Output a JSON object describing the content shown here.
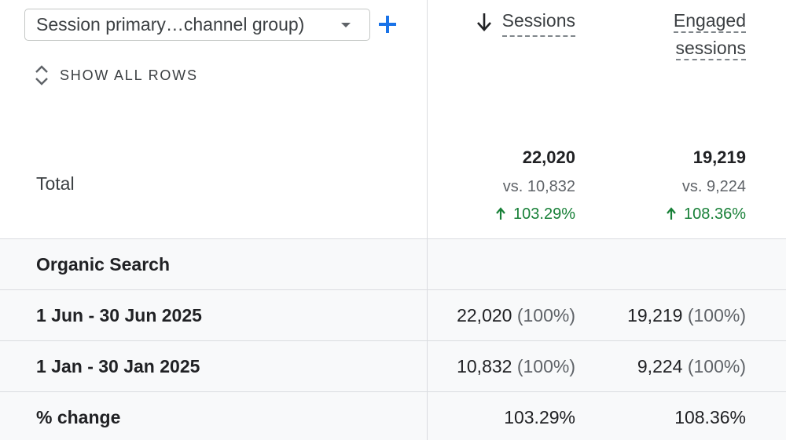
{
  "dimension_picker": {
    "value": "Session primary…channel group)"
  },
  "show_all_rows": {
    "label": "SHOW ALL ROWS"
  },
  "columns": {
    "sessions": "Sessions",
    "engaged_line1": "Engaged",
    "engaged_line2": "sessions",
    "sort_direction": "descending"
  },
  "totals": {
    "label": "Total",
    "sessions": {
      "value": "22,020",
      "compare": "vs. 10,832",
      "change": "103.29%"
    },
    "engaged": {
      "value": "19,219",
      "compare": "vs. 9,224",
      "change": "108.36%"
    }
  },
  "rows": [
    {
      "label": "Organic Search",
      "sessions": "",
      "sessions_share": "",
      "engaged": "",
      "engaged_share": ""
    },
    {
      "label": "1 Jun - 30 Jun 2025",
      "sessions": "22,020",
      "sessions_share": "(100%)",
      "engaged": "19,219",
      "engaged_share": "(100%)"
    },
    {
      "label": "1 Jan - 30 Jan 2025",
      "sessions": "10,832",
      "sessions_share": "(100%)",
      "engaged": "9,224",
      "engaged_share": "(100%)"
    },
    {
      "label": "% change",
      "sessions": "103.29%",
      "sessions_share": "",
      "engaged": "108.36%",
      "engaged_share": ""
    }
  ],
  "colors": {
    "accent_blue": "#1a73e8",
    "positive_green": "#188038",
    "row_shade": "#f8f9fa",
    "divider": "#dadce0"
  },
  "icons": {
    "add": "plus-icon",
    "dropdown": "caret-down-icon",
    "expand": "unfold-icon",
    "sort": "arrow-down-icon",
    "increase": "arrow-up-icon"
  }
}
